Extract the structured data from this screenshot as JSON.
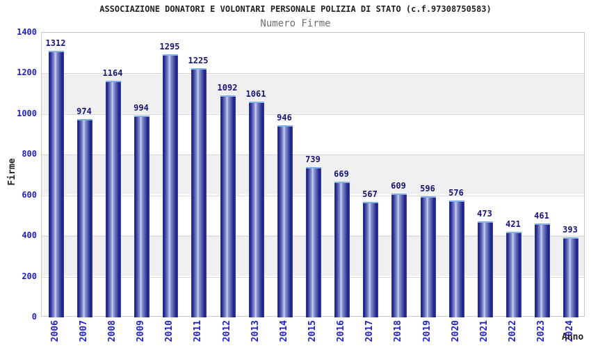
{
  "header": {
    "title": "ASSOCIAZIONE DONATORI E VOLONTARI PERSONALE POLIZIA DI STATO (c.f.97308750583)",
    "subtitle": "Numero Firme"
  },
  "chart_data": {
    "type": "bar",
    "title": "Numero Firme",
    "xlabel": "Anno",
    "ylabel": "Firme",
    "categories": [
      "2006",
      "2007",
      "2008",
      "2009",
      "2010",
      "2011",
      "2012",
      "2013",
      "2014",
      "2015",
      "2016",
      "2017",
      "2018",
      "2019",
      "2020",
      "2021",
      "2022",
      "2023",
      "2024"
    ],
    "values": [
      1312,
      974,
      1164,
      994,
      1295,
      1225,
      1092,
      1061,
      946,
      739,
      669,
      567,
      609,
      596,
      576,
      473,
      421,
      461,
      393
    ],
    "ylim": [
      0,
      1400
    ],
    "yticks": [
      0,
      200,
      400,
      600,
      800,
      1000,
      1200,
      1400
    ],
    "grid": "horizontal",
    "legend": "none",
    "band_fill": "alternating"
  },
  "colors": {
    "title_color": "#222222",
    "subtitle_color": "#6e6e6e",
    "axis_tick_color": "#2222cc",
    "value_label_color": "#15157e",
    "band_gray": "#f0f0f0",
    "grid_color": "#d9d9d9",
    "plot_border": "#c9c9c9",
    "bar_edge": "#3344bb",
    "bar_dark": "#1a1d80",
    "bar_mid": "#8f9ad8",
    "bar_highlight": "#d2d7f2",
    "bar_cap": "#85b2e8"
  }
}
